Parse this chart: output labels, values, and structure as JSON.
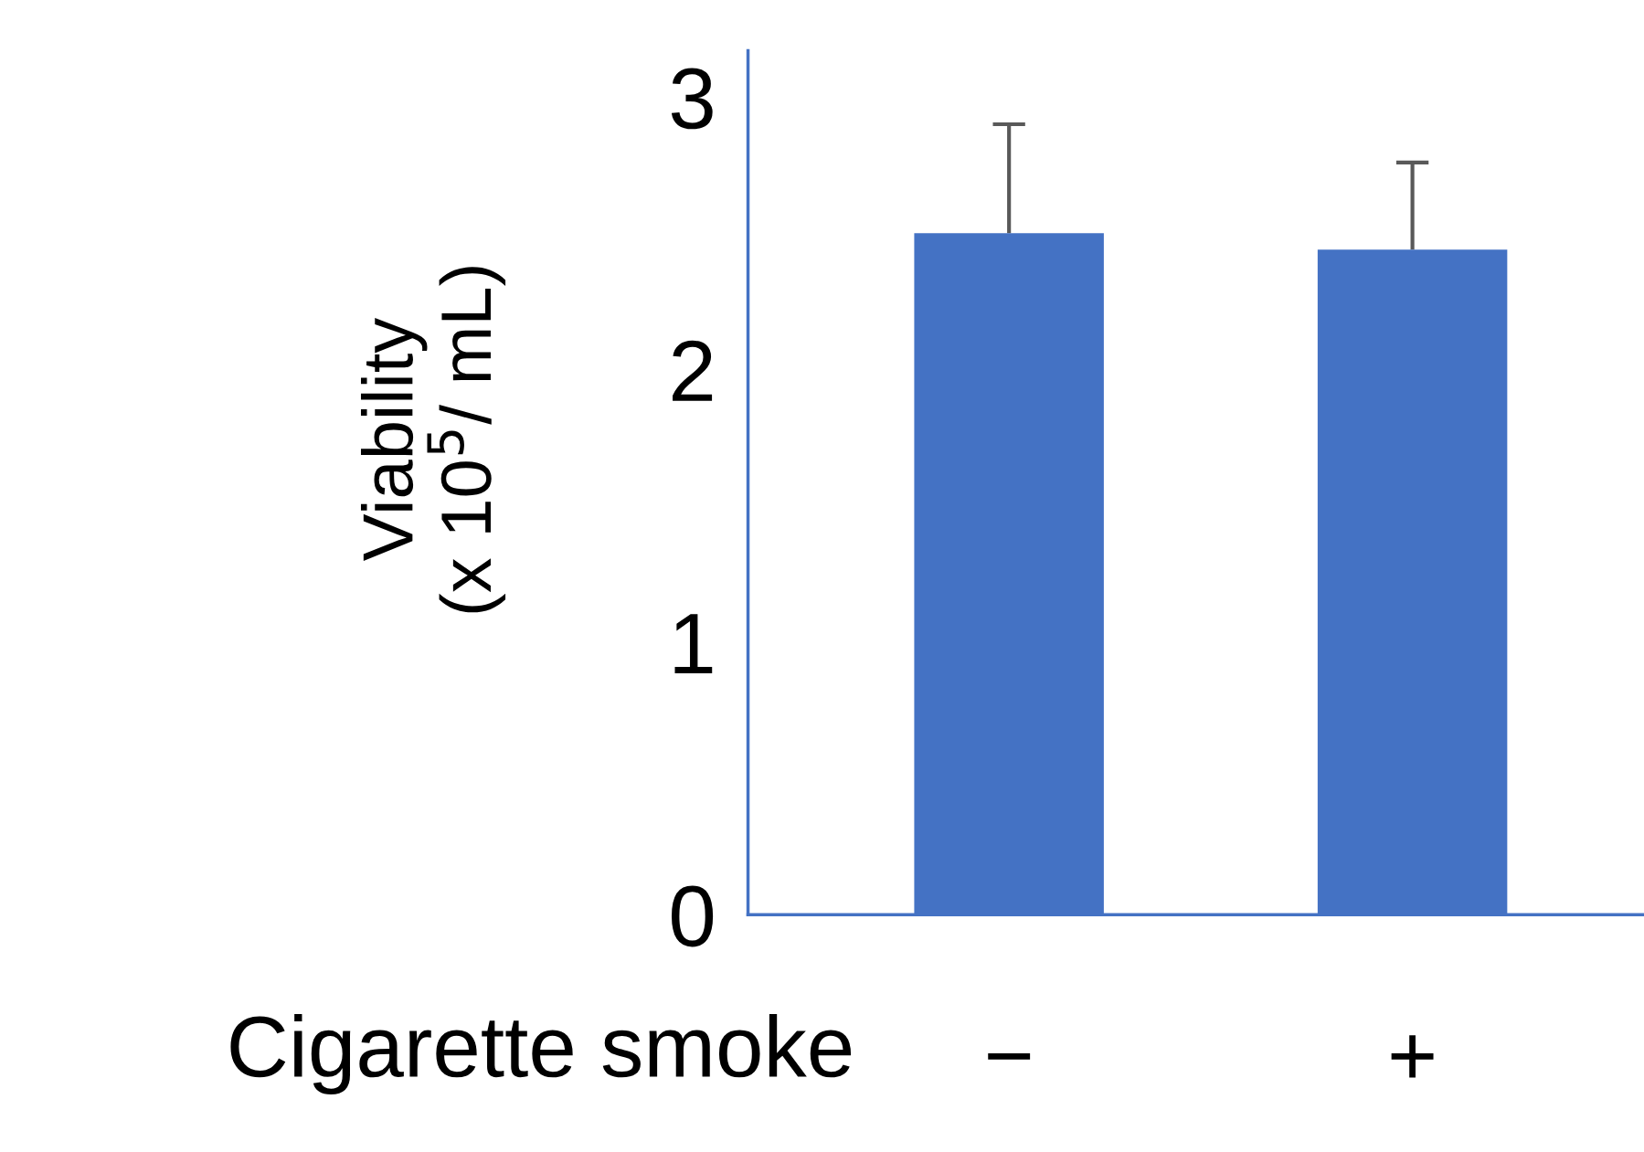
{
  "chart_data": {
    "type": "bar",
    "xlabel": "Cigarette smoke",
    "ylabel": "Viability\n(x 10$^{5}$/ mL)",
    "categories": [
      "−",
      "+"
    ],
    "values": [
      2.5,
      2.44
    ],
    "errors": [
      [
        2.5,
        2.9
      ],
      [
        2.44,
        2.76
      ]
    ],
    "color": "#4472c4",
    "ylim": [
      0,
      3.17
    ],
    "yticks": [
      0,
      1,
      2,
      3
    ],
    "grid": false,
    "legend": false
  }
}
